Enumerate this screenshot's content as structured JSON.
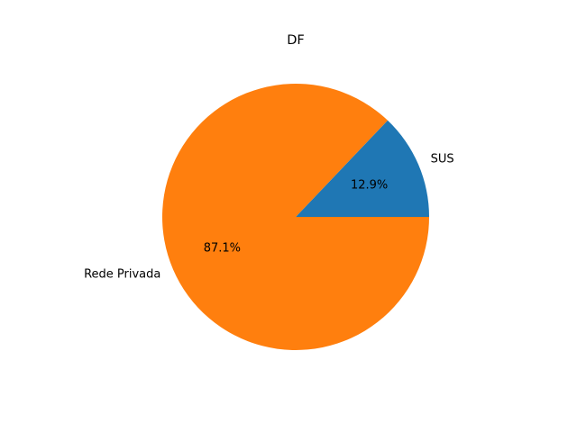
{
  "chart_data": {
    "type": "pie",
    "title": "DF",
    "slices": [
      {
        "label": "SUS",
        "value": 12.9,
        "pct_label": "12.9%",
        "color": "#1f77b4"
      },
      {
        "label": "Rede Privada",
        "value": 87.1,
        "pct_label": "87.1%",
        "color": "#ff7f0e"
      }
    ],
    "start_angle_deg": 0,
    "direction": "counterclockwise",
    "legend": "none"
  }
}
